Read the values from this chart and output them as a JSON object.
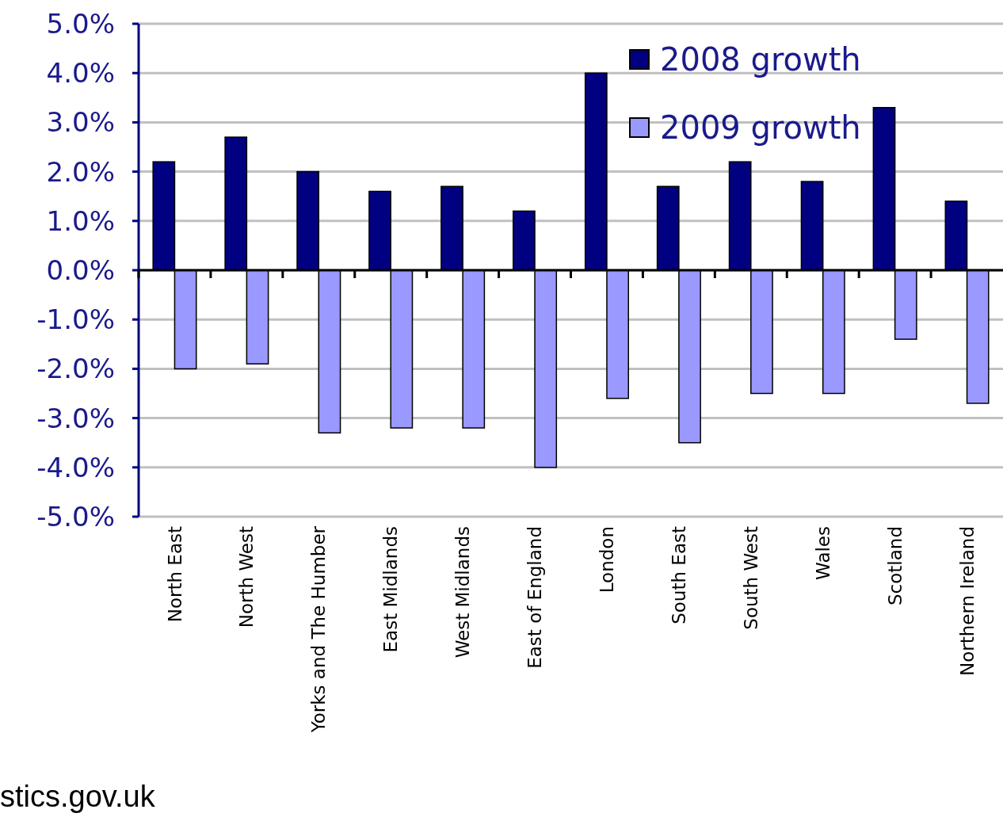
{
  "chart_data": {
    "type": "bar",
    "categories": [
      "North East",
      "North West",
      "Yorks and The Humber",
      "East Midlands",
      "West Midlands",
      "East of England",
      "London",
      "South East",
      "South West",
      "Wales",
      "Scotland",
      "Northern Ireland"
    ],
    "series": [
      {
        "name": "2008 growth",
        "color": "#000080",
        "values": [
          2.2,
          2.7,
          2.0,
          1.6,
          1.7,
          1.2,
          4.0,
          1.7,
          2.2,
          1.8,
          3.3,
          1.4
        ]
      },
      {
        "name": "2009 growth",
        "color": "#9999ff",
        "values": [
          -2.0,
          -1.9,
          -3.3,
          -3.2,
          -3.2,
          -4.0,
          -2.6,
          -3.5,
          -2.5,
          -2.5,
          -1.4,
          -2.7
        ]
      }
    ],
    "ylim": [
      -5,
      5
    ],
    "yticks": [
      {
        "value": -5,
        "label": "-5.0%"
      },
      {
        "value": -4,
        "label": "-4.0%"
      },
      {
        "value": -3,
        "label": "-3.0%"
      },
      {
        "value": -2,
        "label": "-2.0%"
      },
      {
        "value": -1,
        "label": "-1.0%"
      },
      {
        "value": 0,
        "label": "0.0%"
      },
      {
        "value": 1,
        "label": "1.0%"
      },
      {
        "value": 2,
        "label": "2.0%"
      },
      {
        "value": 3,
        "label": "3.0%"
      },
      {
        "value": 4,
        "label": "4.0%"
      },
      {
        "value": 5,
        "label": "5.0%"
      }
    ],
    "grid": "y",
    "legend": "top right",
    "annotations": [
      "stics.gov.uk"
    ]
  }
}
